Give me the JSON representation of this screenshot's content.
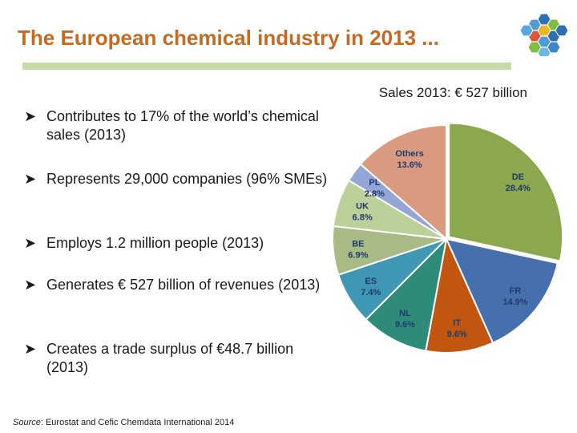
{
  "title": "The European chemical industry in 2013 ...",
  "subtitle": "Sales 2013: € 527 billion",
  "bullets": [
    "Contributes to 17% of the  world’s chemical sales (2013)",
    "Represents 29,000 companies (96% SMEs)",
    "Employs 1.2 million people (2013)",
    "Generates € 527 billion of revenues (2013)",
    "Creates a trade surplus of €48.7  billion (2013)"
  ],
  "source": {
    "prefix": "Source",
    "text": ": Eurostat and Cefic Chemdata International 2014"
  },
  "chart_data": {
    "type": "pie",
    "title": "Sales 2013: € 527 billion",
    "slices": [
      {
        "label": "DE",
        "value": 28.4,
        "value_label": "28.4%",
        "color": "#8ba84e"
      },
      {
        "label": "FR",
        "value": 14.9,
        "value_label": "14.9%",
        "color": "#4670ad"
      },
      {
        "label": "IT",
        "value": 9.6,
        "value_label": "9.6%",
        "color": "#c0560f"
      },
      {
        "label": "NL",
        "value": 9.6,
        "value_label": "9.6%",
        "color": "#2e8b7a"
      },
      {
        "label": "ES",
        "value": 7.4,
        "value_label": "7.4%",
        "color": "#3f97b3"
      },
      {
        "label": "BE",
        "value": 6.9,
        "value_label": "6.9%",
        "color": "#a9bb84"
      },
      {
        "label": "UK",
        "value": 6.8,
        "value_label": "6.8%",
        "color": "#bcd19a"
      },
      {
        "label": "PL",
        "value": 2.8,
        "value_label": "2.8%",
        "color": "#93a6d6"
      },
      {
        "label": "Others",
        "value": 13.6,
        "value_label": "13.6%",
        "color": "#d99a7f"
      }
    ]
  },
  "colors": {
    "title": "#c36b25",
    "title_rule": "#c9dba4",
    "label_text": "#1f3a6e"
  },
  "icons": {
    "bullet": "arrow-bullet-icon",
    "logo": "hexagon-logo-icon"
  }
}
